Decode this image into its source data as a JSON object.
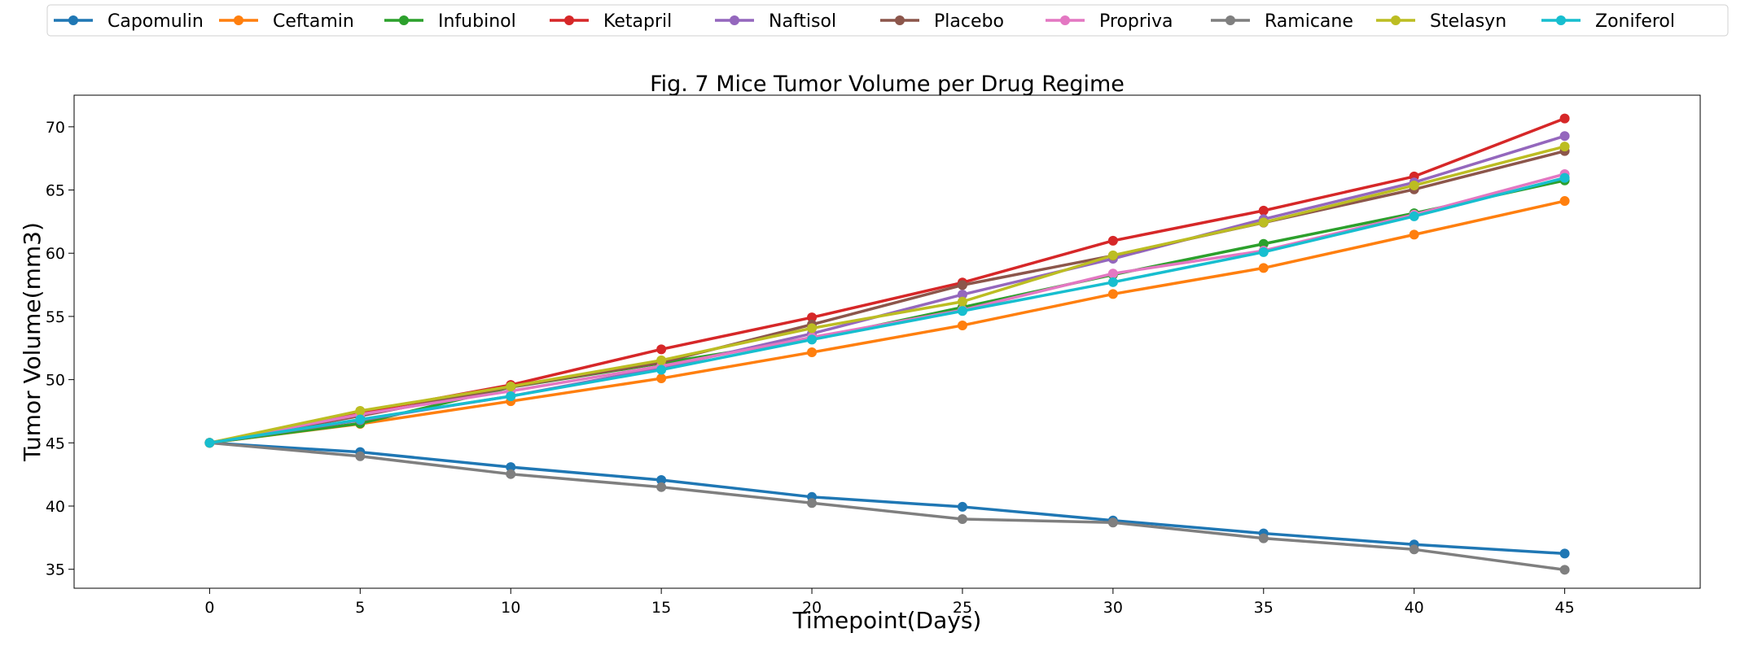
{
  "chart_data": {
    "type": "line",
    "title": "Fig. 7 Mice Tumor Volume per Drug Regime",
    "xlabel": "Timepoint(Days)",
    "ylabel": "Tumor Volume(mm3)",
    "xlim": [
      -4.5,
      49.5
    ],
    "ylim": [
      33.5,
      72.5
    ],
    "xticks": [
      0,
      5,
      10,
      15,
      20,
      25,
      30,
      35,
      40,
      45
    ],
    "yticks": [
      35,
      40,
      45,
      50,
      55,
      60,
      65,
      70
    ],
    "grid": false,
    "legend_position": "top",
    "x": [
      0,
      5,
      10,
      15,
      20,
      25,
      30,
      35,
      40,
      45
    ],
    "series": [
      {
        "name": "Capomulin",
        "color": "#1f77b4",
        "values": [
          45.0,
          44.27,
          43.08,
          42.06,
          40.72,
          39.94,
          38.86,
          37.84,
          36.96,
          36.24
        ]
      },
      {
        "name": "Ceftamin",
        "color": "#ff7f0e",
        "values": [
          45.0,
          46.5,
          48.29,
          50.1,
          52.16,
          54.29,
          56.77,
          58.83,
          61.47,
          64.13
        ]
      },
      {
        "name": "Infubinol",
        "color": "#2ca02c",
        "values": [
          45.0,
          46.54,
          49.4,
          51.3,
          53.2,
          55.72,
          58.3,
          60.74,
          63.16,
          65.76
        ]
      },
      {
        "name": "Ketapril",
        "color": "#d62728",
        "values": [
          45.0,
          47.39,
          49.58,
          52.4,
          54.92,
          57.68,
          60.99,
          63.37,
          66.07,
          70.66
        ]
      },
      {
        "name": "Naftisol",
        "color": "#9467bd",
        "values": [
          45.0,
          46.8,
          48.69,
          50.93,
          53.64,
          56.73,
          59.56,
          62.69,
          65.6,
          69.27
        ]
      },
      {
        "name": "Placebo",
        "color": "#8c564b",
        "values": [
          45.0,
          47.13,
          49.42,
          51.36,
          54.36,
          57.48,
          59.81,
          62.42,
          65.05,
          68.08
        ]
      },
      {
        "name": "Propriva",
        "color": "#e377c2",
        "values": [
          45.0,
          47.25,
          49.1,
          51.07,
          53.35,
          55.5,
          58.39,
          60.2,
          63.05,
          66.26
        ]
      },
      {
        "name": "Ramicane",
        "color": "#7f7f7f",
        "values": [
          45.0,
          43.94,
          42.53,
          41.5,
          40.24,
          38.97,
          38.7,
          37.45,
          36.57,
          34.96
        ]
      },
      {
        "name": "Stelasyn",
        "color": "#bcbd22",
        "values": [
          45.0,
          47.53,
          49.46,
          51.53,
          54.07,
          56.17,
          59.83,
          62.44,
          65.36,
          68.44
        ]
      },
      {
        "name": "Zoniferol",
        "color": "#17becf",
        "values": [
          45.0,
          46.85,
          48.69,
          50.78,
          53.17,
          55.43,
          57.71,
          60.09,
          62.92,
          65.96
        ]
      }
    ]
  }
}
